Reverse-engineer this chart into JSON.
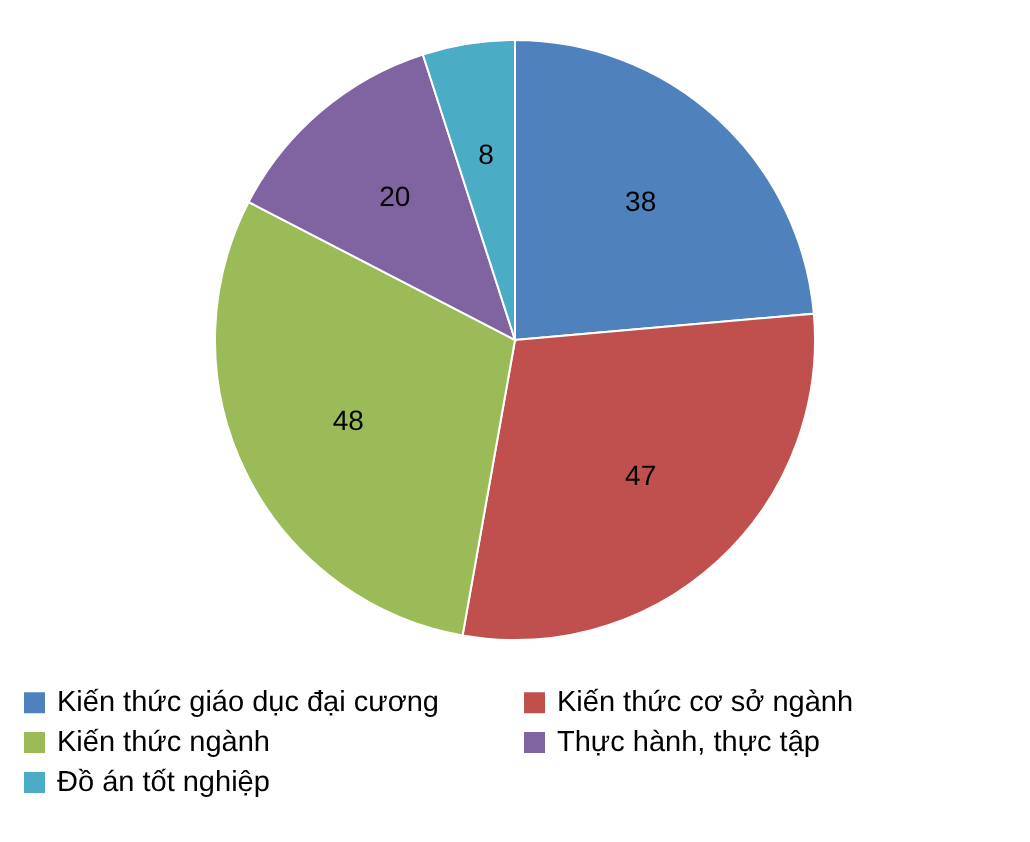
{
  "chart_data": {
    "type": "pie",
    "categories": [
      "Kiến thức giáo dục đại cương",
      "Kiến thức cơ sở ngành",
      "Kiến thức ngành",
      "Thực hành, thực tập",
      "Đồ án tốt nghiệp"
    ],
    "values": [
      38,
      47,
      48,
      20,
      8
    ],
    "colors": [
      "#4f81bd",
      "#c0504d",
      "#9bbb59",
      "#8064a2",
      "#4bacc6"
    ],
    "data_labels": true,
    "legend": "bottom"
  }
}
